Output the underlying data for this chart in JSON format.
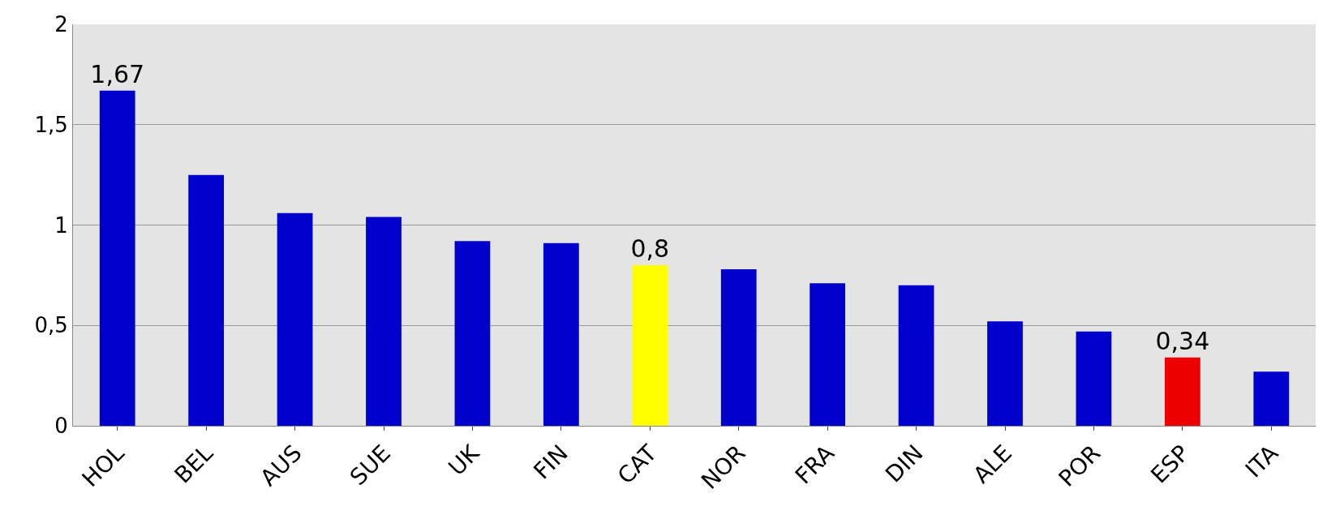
{
  "chart_data": {
    "type": "bar",
    "categories": [
      "HOL",
      "BEL",
      "AUS",
      "SUE",
      "UK",
      "FIN",
      "CAT",
      "NOR",
      "FRA",
      "DIN",
      "ALE",
      "POR",
      "ESP",
      "ITA"
    ],
    "values": [
      1.67,
      1.25,
      1.06,
      1.04,
      0.92,
      0.91,
      0.8,
      0.78,
      0.71,
      0.7,
      0.52,
      0.47,
      0.34,
      0.27
    ],
    "colors": [
      "#0000cc",
      "#0000cc",
      "#0000cc",
      "#0000cc",
      "#0000cc",
      "#0000cc",
      "#ffff00",
      "#0000cc",
      "#0000cc",
      "#0000cc",
      "#0000cc",
      "#0000cc",
      "#ee0000",
      "#0000cc"
    ],
    "value_labels": [
      "1,67",
      null,
      null,
      null,
      null,
      null,
      "0,8",
      null,
      null,
      null,
      null,
      null,
      "0,34",
      null
    ],
    "ylim": [
      0,
      2
    ],
    "yticks": [
      {
        "value": 0,
        "label": "0"
      },
      {
        "value": 0.5,
        "label": "0,5"
      },
      {
        "value": 1,
        "label": "1"
      },
      {
        "value": 1.5,
        "label": "1,5"
      },
      {
        "value": 2,
        "label": "2"
      }
    ],
    "grid": "y"
  }
}
